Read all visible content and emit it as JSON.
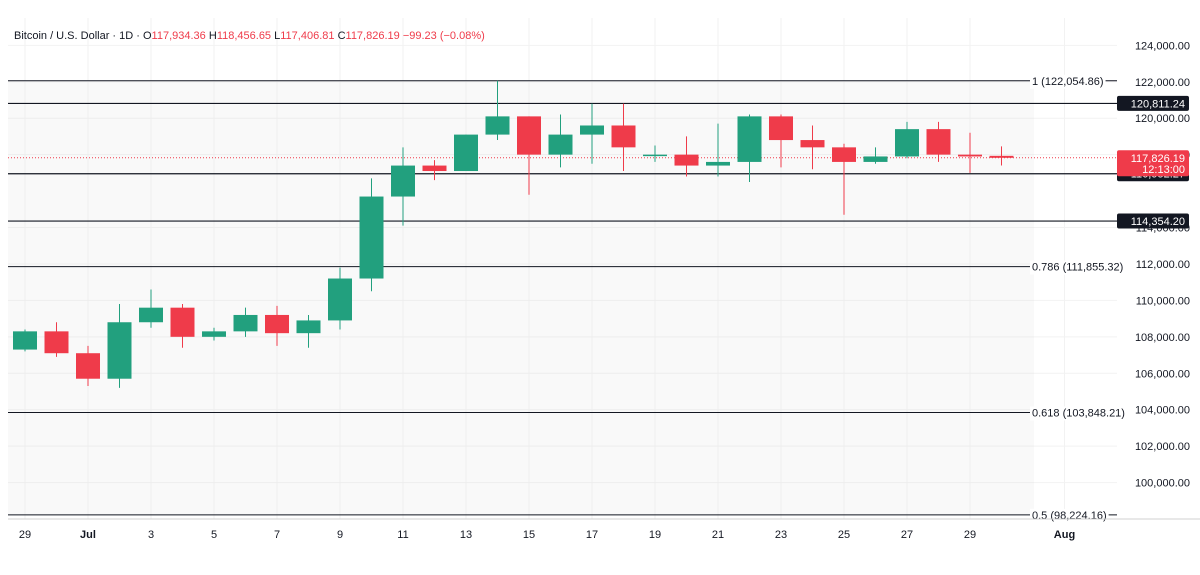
{
  "header": {
    "symbol": "Bitcoin / U.S. Dollar · 1D ·",
    "o_key": "O",
    "o_val": "117,934.36",
    "h_key": "H",
    "h_val": "118,456.65",
    "l_key": "L",
    "l_val": "117,406.81",
    "c_key": "C",
    "c_val": "117,826.19",
    "change": "−99.23 (−0.08%)"
  },
  "colors": {
    "up": "#22a07e",
    "down": "#ef3b4a",
    "grid": "#f2f2f2",
    "text": "#131722"
  },
  "chart_data": {
    "type": "candlestick",
    "ylim": [
      98000,
      125500
    ],
    "y_ticks": [
      {
        "v": 100000,
        "label": "100,000.00"
      },
      {
        "v": 102000,
        "label": "102,000.00"
      },
      {
        "v": 104000,
        "label": "104,000.00"
      },
      {
        "v": 106000,
        "label": "106,000.00"
      },
      {
        "v": 108000,
        "label": "108,000.00"
      },
      {
        "v": 110000,
        "label": "110,000.00"
      },
      {
        "v": 112000,
        "label": "112,000.00"
      },
      {
        "v": 114000,
        "label": "114,000.00"
      },
      {
        "v": 118000,
        "label": "118,000.00"
      },
      {
        "v": 120000,
        "label": "120,000.00"
      },
      {
        "v": 122000,
        "label": "122,000.00"
      },
      {
        "v": 124000,
        "label": "124,000.00"
      }
    ],
    "x_ticks": [
      {
        "i": 0,
        "label": "29"
      },
      {
        "i": 2,
        "label": "Jul"
      },
      {
        "i": 4,
        "label": "3"
      },
      {
        "i": 6,
        "label": "5"
      },
      {
        "i": 8,
        "label": "7"
      },
      {
        "i": 10,
        "label": "9"
      },
      {
        "i": 12,
        "label": "11"
      },
      {
        "i": 14,
        "label": "13"
      },
      {
        "i": 16,
        "label": "15"
      },
      {
        "i": 18,
        "label": "17"
      },
      {
        "i": 20,
        "label": "19"
      },
      {
        "i": 22,
        "label": "21"
      },
      {
        "i": 24,
        "label": "23"
      },
      {
        "i": 26,
        "label": "25"
      },
      {
        "i": 28,
        "label": "27"
      },
      {
        "i": 30,
        "label": "29"
      },
      {
        "i": 33,
        "label": "Aug"
      }
    ],
    "candles": [
      {
        "date": "Jun 29",
        "o": 107300,
        "h": 108400,
        "l": 107200,
        "c": 108300
      },
      {
        "date": "Jun 30",
        "o": 108300,
        "h": 108800,
        "l": 106900,
        "c": 107100
      },
      {
        "date": "Jul 1",
        "o": 107100,
        "h": 107500,
        "l": 105300,
        "c": 105700
      },
      {
        "date": "Jul 2",
        "o": 105700,
        "h": 109800,
        "l": 105200,
        "c": 108800
      },
      {
        "date": "Jul 3",
        "o": 108800,
        "h": 110600,
        "l": 108500,
        "c": 109600
      },
      {
        "date": "Jul 4",
        "o": 109600,
        "h": 109800,
        "l": 107400,
        "c": 108000
      },
      {
        "date": "Jul 5",
        "o": 108000,
        "h": 108500,
        "l": 107800,
        "c": 108300
      },
      {
        "date": "Jul 6",
        "o": 108300,
        "h": 109600,
        "l": 108000,
        "c": 109200
      },
      {
        "date": "Jul 7",
        "o": 109200,
        "h": 109700,
        "l": 107500,
        "c": 108200
      },
      {
        "date": "Jul 8",
        "o": 108200,
        "h": 109200,
        "l": 107400,
        "c": 108900
      },
      {
        "date": "Jul 9",
        "o": 108900,
        "h": 111800,
        "l": 108400,
        "c": 111200
      },
      {
        "date": "Jul 10",
        "o": 111200,
        "h": 116700,
        "l": 110500,
        "c": 115700
      },
      {
        "date": "Jul 11",
        "o": 115700,
        "h": 118400,
        "l": 114100,
        "c": 117400
      },
      {
        "date": "Jul 12",
        "o": 117400,
        "h": 117700,
        "l": 116600,
        "c": 117100
      },
      {
        "date": "Jul 13",
        "o": 117100,
        "h": 119100,
        "l": 117100,
        "c": 119100
      },
      {
        "date": "Jul 14",
        "o": 119100,
        "h": 122054,
        "l": 118800,
        "c": 120100
      },
      {
        "date": "Jul 15",
        "o": 120100,
        "h": 120100,
        "l": 115800,
        "c": 118000
      },
      {
        "date": "Jul 16",
        "o": 118000,
        "h": 120200,
        "l": 117300,
        "c": 119100
      },
      {
        "date": "Jul 17",
        "o": 119100,
        "h": 120800,
        "l": 117500,
        "c": 119600
      },
      {
        "date": "Jul 18",
        "o": 119600,
        "h": 120800,
        "l": 117100,
        "c": 118400
      },
      {
        "date": "Jul 19",
        "o": 118000,
        "h": 118500,
        "l": 117600,
        "c": 118000
      },
      {
        "date": "Jul 20",
        "o": 118000,
        "h": 119000,
        "l": 116800,
        "c": 117400
      },
      {
        "date": "Jul 21",
        "o": 117400,
        "h": 119700,
        "l": 116800,
        "c": 117600
      },
      {
        "date": "Jul 22",
        "o": 117600,
        "h": 120200,
        "l": 116500,
        "c": 120100
      },
      {
        "date": "Jul 23",
        "o": 120100,
        "h": 120200,
        "l": 117300,
        "c": 118800
      },
      {
        "date": "Jul 24",
        "o": 118800,
        "h": 119600,
        "l": 117200,
        "c": 118400
      },
      {
        "date": "Jul 25",
        "o": 118400,
        "h": 118600,
        "l": 114700,
        "c": 117600
      },
      {
        "date": "Jul 26",
        "o": 117600,
        "h": 118400,
        "l": 117500,
        "c": 117900
      },
      {
        "date": "Jul 27",
        "o": 117900,
        "h": 119800,
        "l": 117800,
        "c": 119400
      },
      {
        "date": "Jul 28",
        "o": 119400,
        "h": 119800,
        "l": 117600,
        "c": 118000
      },
      {
        "date": "Jul 29",
        "o": 118000,
        "h": 119200,
        "l": 117000,
        "c": 117900
      },
      {
        "date": "Jul 30",
        "o": 117934.36,
        "h": 118456.65,
        "l": 117406.81,
        "c": 117826.19
      }
    ],
    "fib_levels": [
      {
        "price": 122054.86,
        "label": "1 (122,054.86)"
      },
      {
        "price": 111855.32,
        "label": "0.786 (111,855.32)"
      },
      {
        "price": 103848.21,
        "label": "0.618 (103,848.21)"
      },
      {
        "price": 98224.16,
        "label": "0.5 (98,224.16)"
      }
    ],
    "hlines": [
      {
        "price": 120811.24,
        "label": "120,811.24"
      },
      {
        "price": 116952.27,
        "label": "116,952.27"
      },
      {
        "price": 114354.2,
        "label": "114,354.20"
      }
    ],
    "last_price": {
      "price": 117826.19,
      "label": "117,826.19",
      "countdown": "12:13:00"
    }
  }
}
